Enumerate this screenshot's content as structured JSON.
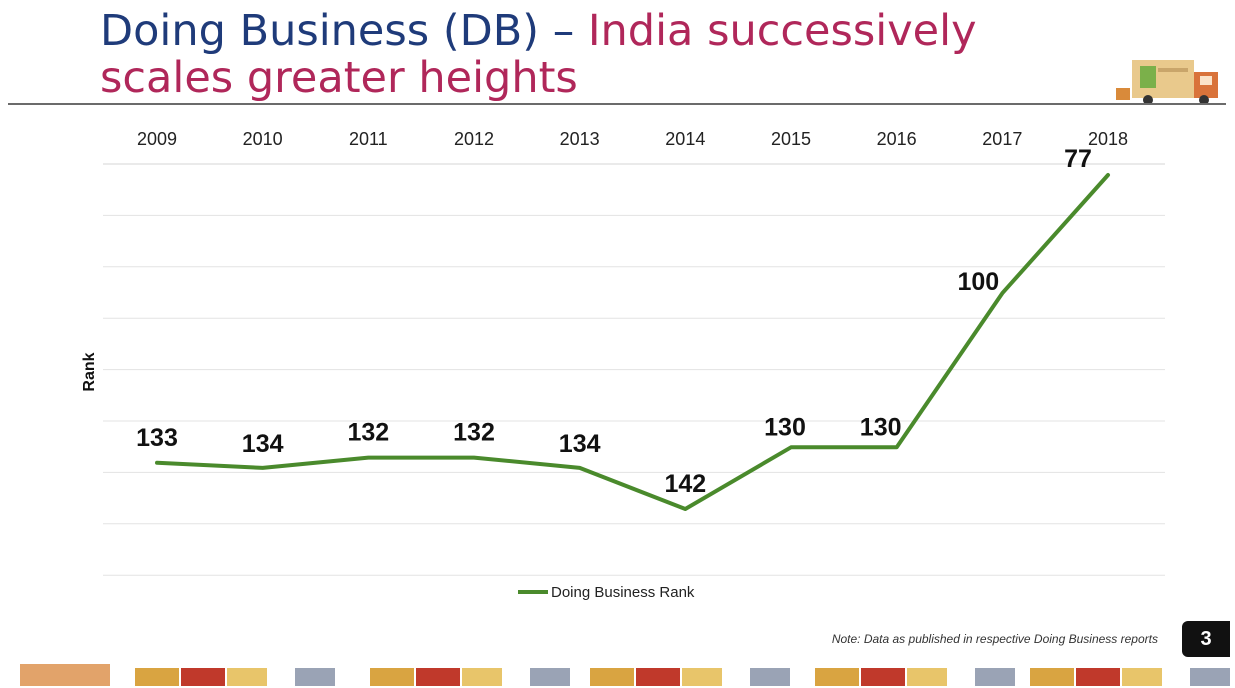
{
  "title": {
    "part1": "Doing Business (DB)",
    "separator": " – ",
    "part2": "India successively scales greater heights"
  },
  "chart_data": {
    "type": "line",
    "categories": [
      "2009",
      "2010",
      "2011",
      "2012",
      "2013",
      "2014",
      "2015",
      "2016",
      "2017",
      "2018"
    ],
    "series": [
      {
        "name": "Doing Business Rank",
        "values": [
          133,
          134,
          132,
          132,
          134,
          142,
          130,
          130,
          100,
          77
        ]
      }
    ],
    "ylabel": "Rank",
    "xlabel": "",
    "x_axis_position": "top",
    "y_reversed": true,
    "ylim": [
      77,
      142
    ],
    "grid": true,
    "legend": "bottom",
    "line_color": "#4a8a2c"
  },
  "note": "Note: Data as published in respective Doing Business reports",
  "page_number": "3",
  "icons": [
    "truck-logo-icon",
    "freight-trucks-footer-icon"
  ]
}
